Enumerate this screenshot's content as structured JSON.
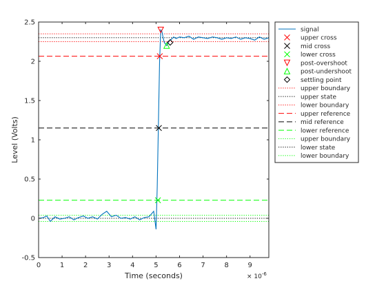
{
  "chart_data": {
    "type": "line",
    "title": "",
    "xlabel": "Time (seconds)",
    "ylabel": "Level (Volts)",
    "x_exponent_label": "× 10",
    "x_exponent_power": "-6",
    "xlim": [
      0,
      9.8
    ],
    "ylim": [
      -0.5,
      2.5
    ],
    "xticks": [
      0,
      1,
      2,
      3,
      4,
      5,
      6,
      7,
      8,
      9
    ],
    "yticks": [
      -0.5,
      0,
      0.5,
      1,
      1.5,
      2,
      2.5
    ],
    "xtick_labels": [
      "0",
      "1",
      "2",
      "3",
      "4",
      "5",
      "6",
      "7",
      "8",
      "9"
    ],
    "ytick_labels": [
      "-0.5",
      "0",
      "0.5",
      "1",
      "1.5",
      "2",
      "2.5"
    ],
    "grid": false,
    "legend_position": "outside-top-right",
    "series": [
      {
        "name": "signal",
        "color": "#0072bd",
        "x": [
          0.0,
          0.2,
          0.35,
          0.5,
          0.7,
          0.9,
          1.1,
          1.3,
          1.5,
          1.7,
          1.9,
          2.1,
          2.3,
          2.5,
          2.7,
          2.9,
          3.1,
          3.3,
          3.5,
          3.7,
          3.9,
          4.1,
          4.3,
          4.5,
          4.7,
          4.9,
          5.0,
          5.05,
          5.1,
          5.15,
          5.2,
          5.25,
          5.3,
          5.35,
          5.45,
          5.55,
          5.65,
          5.75,
          5.85,
          6.0,
          6.2,
          6.4,
          6.6,
          6.8,
          7.0,
          7.2,
          7.4,
          7.6,
          7.8,
          8.0,
          8.2,
          8.4,
          8.6,
          8.8,
          9.0,
          9.2,
          9.4,
          9.6,
          9.8
        ],
        "y": [
          0.0,
          0.01,
          0.03,
          -0.04,
          0.02,
          -0.01,
          0.0,
          0.02,
          -0.02,
          0.01,
          0.03,
          0.0,
          0.02,
          -0.01,
          0.05,
          0.09,
          0.02,
          0.04,
          0.0,
          0.01,
          -0.01,
          0.02,
          -0.02,
          0.01,
          0.02,
          0.09,
          -0.14,
          0.4,
          1.2,
          2.0,
          2.4,
          2.38,
          2.3,
          2.24,
          2.2,
          2.26,
          2.28,
          2.31,
          2.29,
          2.31,
          2.3,
          2.32,
          2.28,
          2.31,
          2.3,
          2.29,
          2.31,
          2.3,
          2.28,
          2.3,
          2.29,
          2.31,
          2.28,
          2.3,
          2.29,
          2.27,
          2.31,
          2.28,
          2.3
        ]
      }
    ],
    "markers": [
      {
        "name": "upper cross",
        "shape": "x",
        "color": "#ff0000",
        "x": 5.16,
        "y": 2.065
      },
      {
        "name": "mid cross",
        "shape": "x",
        "color": "#000000",
        "x": 5.12,
        "y": 1.15
      },
      {
        "name": "lower cross",
        "shape": "x",
        "color": "#00ff00",
        "x": 5.08,
        "y": 0.23
      },
      {
        "name": "post-overshoot",
        "shape": "triangle-down",
        "color": "#ff0000",
        "x": 5.2,
        "y": 2.4
      },
      {
        "name": "post-undershoot",
        "shape": "triangle-up",
        "color": "#00ff00",
        "x": 5.45,
        "y": 2.2
      },
      {
        "name": "settling point",
        "shape": "diamond",
        "color": "#000000",
        "x": 5.6,
        "y": 2.24
      }
    ],
    "hlines": [
      {
        "name": "upper boundary",
        "style": "dotted",
        "color": "#ff0000",
        "y": 2.35
      },
      {
        "name": "upper state",
        "style": "dotted",
        "color": "#000000",
        "y": 2.3
      },
      {
        "name": "lower boundary",
        "style": "dotted",
        "color": "#ff0000",
        "y": 2.25
      },
      {
        "name": "upper reference",
        "style": "dashed",
        "color": "#ff0000",
        "y": 2.065
      },
      {
        "name": "mid reference",
        "style": "dashed",
        "color": "#000000",
        "y": 1.15
      },
      {
        "name": "lower reference",
        "style": "dashed",
        "color": "#00ff00",
        "y": 0.23
      },
      {
        "name": "upper boundary",
        "style": "dotted",
        "color": "#00ff00",
        "y": 0.04
      },
      {
        "name": "lower state",
        "style": "dotted",
        "color": "#000000",
        "y": 0.0
      },
      {
        "name": "lower boundary",
        "style": "dotted",
        "color": "#00ff00",
        "y": -0.04
      }
    ],
    "legend": [
      {
        "label": "signal",
        "glyph": "solid",
        "color": "#0072bd"
      },
      {
        "label": "upper cross",
        "glyph": "x",
        "color": "#ff0000"
      },
      {
        "label": "mid cross",
        "glyph": "x",
        "color": "#000000"
      },
      {
        "label": "lower cross",
        "glyph": "x",
        "color": "#00ff00"
      },
      {
        "label": "post-overshoot",
        "glyph": "triangle-down",
        "color": "#ff0000"
      },
      {
        "label": "post-undershoot",
        "glyph": "triangle-up",
        "color": "#00ff00"
      },
      {
        "label": "settling point",
        "glyph": "diamond",
        "color": "#000000"
      },
      {
        "label": "upper boundary",
        "glyph": "dotted",
        "color": "#ff0000"
      },
      {
        "label": "upper state",
        "glyph": "dotted",
        "color": "#000000"
      },
      {
        "label": "lower boundary",
        "glyph": "dotted",
        "color": "#ff0000"
      },
      {
        "label": "upper reference",
        "glyph": "dashed",
        "color": "#ff0000"
      },
      {
        "label": "mid reference",
        "glyph": "dashed",
        "color": "#000000"
      },
      {
        "label": "lower reference",
        "glyph": "dashed",
        "color": "#00ff00"
      },
      {
        "label": "upper boundary",
        "glyph": "dotted",
        "color": "#00ff00"
      },
      {
        "label": "lower state",
        "glyph": "dotted",
        "color": "#000000"
      },
      {
        "label": "lower boundary",
        "glyph": "dotted",
        "color": "#00ff00"
      }
    ]
  }
}
